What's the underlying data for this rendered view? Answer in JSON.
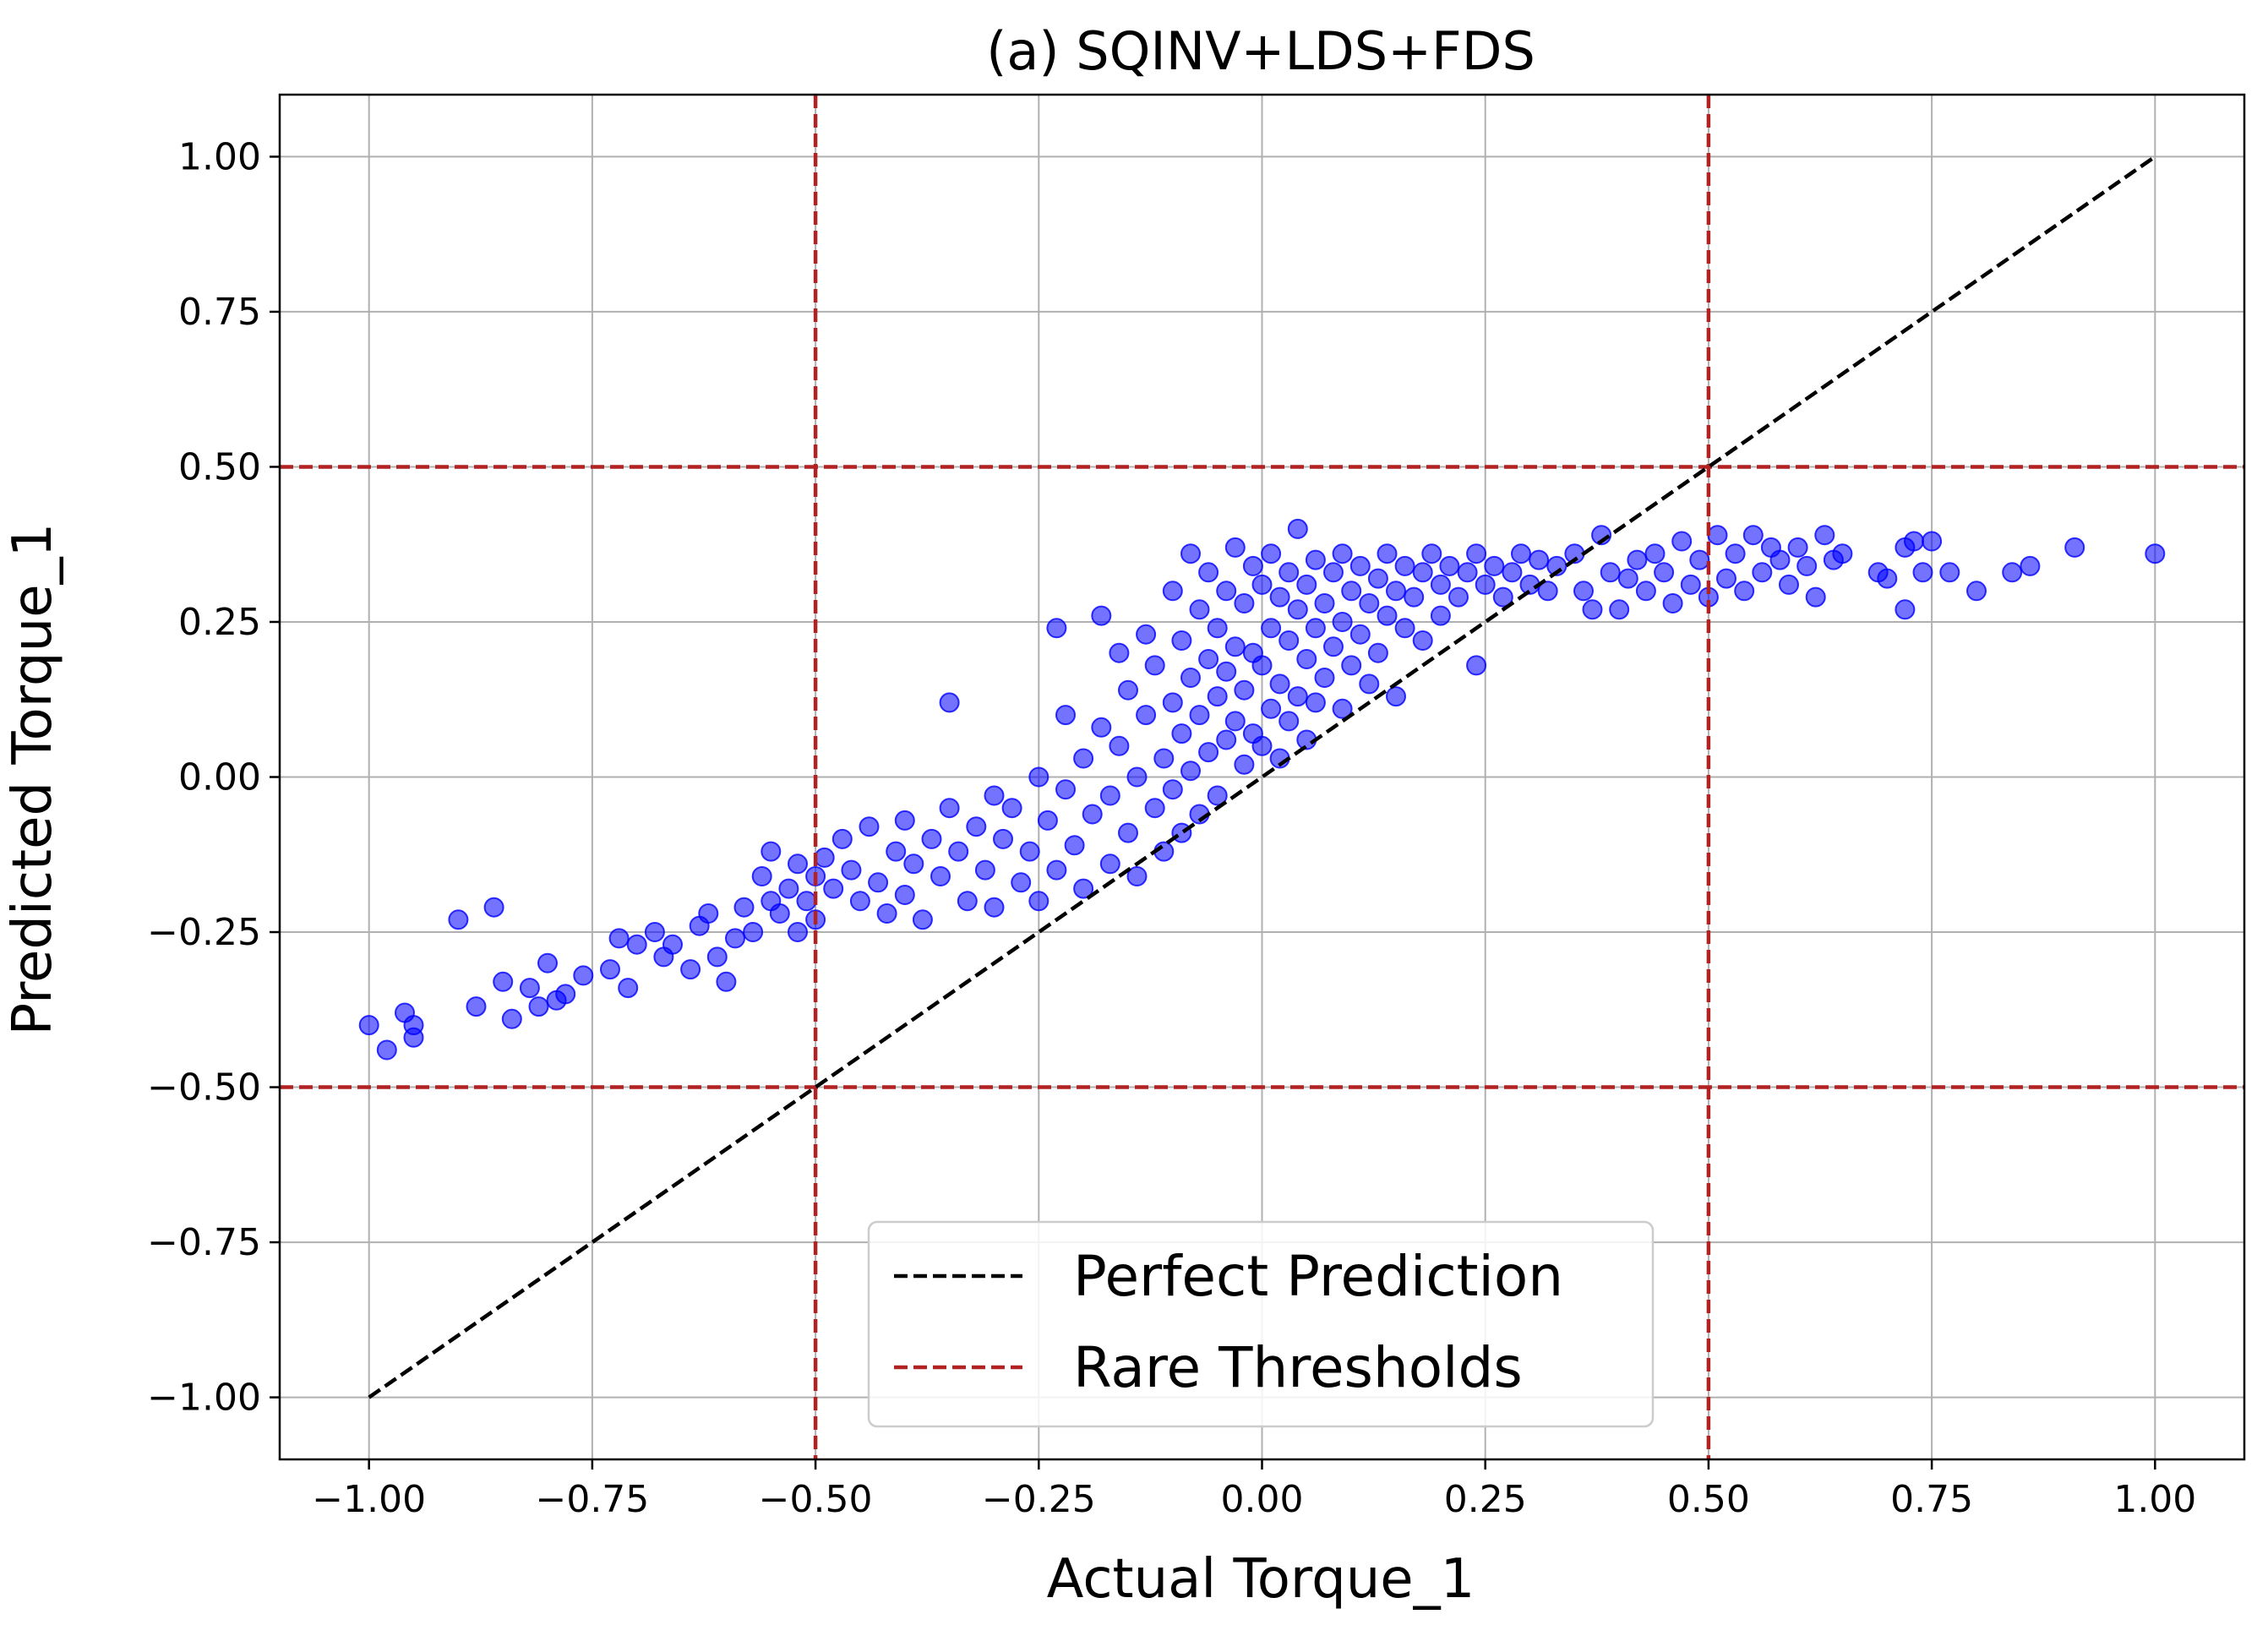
{
  "chart_data": {
    "type": "scatter",
    "title": "(a) SQINV+LDS+FDS",
    "xlabel": "Actual Torque_1",
    "ylabel": "Predicted Torque_1",
    "xlim": [
      -1.1,
      1.1
    ],
    "ylim": [
      -1.1,
      1.1
    ],
    "xticks": [
      -1.0,
      -0.75,
      -0.5,
      -0.25,
      0.0,
      0.25,
      0.5,
      0.75,
      1.0
    ],
    "yticks": [
      -1.0,
      -0.75,
      -0.5,
      -0.25,
      0.0,
      0.25,
      0.5,
      0.75,
      1.0
    ],
    "xtick_labels": [
      "−1.00",
      "−0.75",
      "−0.50",
      "−0.25",
      "0.00",
      "0.25",
      "0.50",
      "0.75",
      "1.00"
    ],
    "ytick_labels": [
      "−1.00",
      "−0.75",
      "−0.50",
      "−0.25",
      "0.00",
      "0.25",
      "0.50",
      "0.75",
      "1.00"
    ],
    "grid": true,
    "legend_position": "bottom-center",
    "perfect_prediction": {
      "name": "Perfect Prediction",
      "x": [
        -1.0,
        1.0
      ],
      "y": [
        -1.0,
        1.0
      ],
      "color": "#000000",
      "style": "dashed"
    },
    "rare_thresholds": {
      "name": "Rare Thresholds",
      "x": [
        -0.5,
        0.5
      ],
      "y": [
        -0.5,
        0.5
      ],
      "color": "#b22222",
      "style": "dashed"
    },
    "scatter_color": "#0000ff",
    "scatter_alpha": 0.55,
    "points": [
      [
        -1.0,
        -0.4
      ],
      [
        -0.98,
        -0.44
      ],
      [
        -0.96,
        -0.38
      ],
      [
        -0.95,
        -0.4
      ],
      [
        -0.95,
        -0.42
      ],
      [
        -0.9,
        -0.23
      ],
      [
        -0.88,
        -0.37
      ],
      [
        -0.86,
        -0.21
      ],
      [
        -0.85,
        -0.33
      ],
      [
        -0.84,
        -0.39
      ],
      [
        -0.82,
        -0.34
      ],
      [
        -0.81,
        -0.37
      ],
      [
        -0.8,
        -0.3
      ],
      [
        -0.79,
        -0.36
      ],
      [
        -0.78,
        -0.35
      ],
      [
        -0.76,
        -0.32
      ],
      [
        -0.73,
        -0.31
      ],
      [
        -0.72,
        -0.26
      ],
      [
        -0.71,
        -0.34
      ],
      [
        -0.7,
        -0.27
      ],
      [
        -0.68,
        -0.25
      ],
      [
        -0.67,
        -0.29
      ],
      [
        -0.66,
        -0.27
      ],
      [
        -0.64,
        -0.31
      ],
      [
        -0.63,
        -0.24
      ],
      [
        -0.62,
        -0.22
      ],
      [
        -0.61,
        -0.29
      ],
      [
        -0.6,
        -0.33
      ],
      [
        -0.59,
        -0.26
      ],
      [
        -0.58,
        -0.21
      ],
      [
        -0.57,
        -0.25
      ],
      [
        -0.56,
        -0.16
      ],
      [
        -0.55,
        -0.12
      ],
      [
        -0.55,
        -0.2
      ],
      [
        -0.54,
        -0.22
      ],
      [
        -0.53,
        -0.18
      ],
      [
        -0.52,
        -0.14
      ],
      [
        -0.52,
        -0.25
      ],
      [
        -0.51,
        -0.2
      ],
      [
        -0.5,
        -0.16
      ],
      [
        -0.5,
        -0.23
      ],
      [
        -0.49,
        -0.13
      ],
      [
        -0.48,
        -0.18
      ],
      [
        -0.47,
        -0.1
      ],
      [
        -0.46,
        -0.15
      ],
      [
        -0.45,
        -0.2
      ],
      [
        -0.44,
        -0.08
      ],
      [
        -0.43,
        -0.17
      ],
      [
        -0.42,
        -0.22
      ],
      [
        -0.41,
        -0.12
      ],
      [
        -0.4,
        -0.07
      ],
      [
        -0.4,
        -0.19
      ],
      [
        -0.39,
        -0.14
      ],
      [
        -0.38,
        -0.23
      ],
      [
        -0.37,
        -0.1
      ],
      [
        -0.36,
        -0.16
      ],
      [
        -0.35,
        -0.05
      ],
      [
        -0.35,
        0.12
      ],
      [
        -0.34,
        -0.12
      ],
      [
        -0.33,
        -0.2
      ],
      [
        -0.32,
        -0.08
      ],
      [
        -0.31,
        -0.15
      ],
      [
        -0.3,
        -0.03
      ],
      [
        -0.3,
        -0.21
      ],
      [
        -0.29,
        -0.1
      ],
      [
        -0.28,
        -0.05
      ],
      [
        -0.27,
        -0.17
      ],
      [
        -0.26,
        -0.12
      ],
      [
        -0.25,
        0.0
      ],
      [
        -0.25,
        -0.2
      ],
      [
        -0.24,
        -0.07
      ],
      [
        -0.23,
        0.24
      ],
      [
        -0.23,
        -0.15
      ],
      [
        -0.22,
        0.1
      ],
      [
        -0.22,
        -0.02
      ],
      [
        -0.21,
        -0.11
      ],
      [
        -0.2,
        0.03
      ],
      [
        -0.2,
        -0.18
      ],
      [
        -0.19,
        -0.06
      ],
      [
        -0.18,
        0.26
      ],
      [
        -0.18,
        0.08
      ],
      [
        -0.17,
        -0.03
      ],
      [
        -0.17,
        -0.14
      ],
      [
        -0.16,
        0.2
      ],
      [
        -0.16,
        0.05
      ],
      [
        -0.15,
        -0.09
      ],
      [
        -0.15,
        0.14
      ],
      [
        -0.14,
        0.0
      ],
      [
        -0.14,
        -0.16
      ],
      [
        -0.13,
        0.23
      ],
      [
        -0.13,
        0.1
      ],
      [
        -0.12,
        -0.05
      ],
      [
        -0.12,
        0.18
      ],
      [
        -0.11,
        0.03
      ],
      [
        -0.11,
        -0.12
      ],
      [
        -0.1,
        0.3
      ],
      [
        -0.1,
        0.12
      ],
      [
        -0.1,
        -0.02
      ],
      [
        -0.09,
        0.22
      ],
      [
        -0.09,
        0.07
      ],
      [
        -0.09,
        -0.09
      ],
      [
        -0.08,
        0.36
      ],
      [
        -0.08,
        0.16
      ],
      [
        -0.08,
        0.01
      ],
      [
        -0.07,
        0.27
      ],
      [
        -0.07,
        0.1
      ],
      [
        -0.07,
        -0.06
      ],
      [
        -0.06,
        0.33
      ],
      [
        -0.06,
        0.19
      ],
      [
        -0.06,
        0.04
      ],
      [
        -0.05,
        0.24
      ],
      [
        -0.05,
        0.13
      ],
      [
        -0.05,
        -0.03
      ],
      [
        -0.04,
        0.3
      ],
      [
        -0.04,
        0.17
      ],
      [
        -0.04,
        0.06
      ],
      [
        -0.03,
        0.37
      ],
      [
        -0.03,
        0.21
      ],
      [
        -0.03,
        0.09
      ],
      [
        -0.02,
        0.28
      ],
      [
        -0.02,
        0.14
      ],
      [
        -0.02,
        0.02
      ],
      [
        -0.01,
        0.34
      ],
      [
        -0.01,
        0.2
      ],
      [
        -0.01,
        0.07
      ],
      [
        0.0,
        0.31
      ],
      [
        0.0,
        0.18
      ],
      [
        0.0,
        0.05
      ],
      [
        0.01,
        0.36
      ],
      [
        0.01,
        0.24
      ],
      [
        0.01,
        0.11
      ],
      [
        0.02,
        0.29
      ],
      [
        0.02,
        0.15
      ],
      [
        0.02,
        0.03
      ],
      [
        0.03,
        0.33
      ],
      [
        0.03,
        0.22
      ],
      [
        0.03,
        0.09
      ],
      [
        0.04,
        0.4
      ],
      [
        0.04,
        0.27
      ],
      [
        0.04,
        0.13
      ],
      [
        0.05,
        0.31
      ],
      [
        0.05,
        0.19
      ],
      [
        0.05,
        0.06
      ],
      [
        0.06,
        0.35
      ],
      [
        0.06,
        0.24
      ],
      [
        0.06,
        0.12
      ],
      [
        0.07,
        0.28
      ],
      [
        0.07,
        0.16
      ],
      [
        0.08,
        0.33
      ],
      [
        0.08,
        0.21
      ],
      [
        0.09,
        0.36
      ],
      [
        0.09,
        0.25
      ],
      [
        0.09,
        0.11
      ],
      [
        0.1,
        0.3
      ],
      [
        0.1,
        0.18
      ],
      [
        0.11,
        0.34
      ],
      [
        0.11,
        0.23
      ],
      [
        0.12,
        0.28
      ],
      [
        0.12,
        0.15
      ],
      [
        0.13,
        0.32
      ],
      [
        0.13,
        0.2
      ],
      [
        0.14,
        0.36
      ],
      [
        0.14,
        0.26
      ],
      [
        0.15,
        0.3
      ],
      [
        0.15,
        0.13
      ],
      [
        0.16,
        0.34
      ],
      [
        0.16,
        0.24
      ],
      [
        0.17,
        0.29
      ],
      [
        0.18,
        0.33
      ],
      [
        0.18,
        0.22
      ],
      [
        0.19,
        0.36
      ],
      [
        0.2,
        0.31
      ],
      [
        0.2,
        0.26
      ],
      [
        0.21,
        0.34
      ],
      [
        0.22,
        0.29
      ],
      [
        0.23,
        0.33
      ],
      [
        0.24,
        0.36
      ],
      [
        0.24,
        0.18
      ],
      [
        0.25,
        0.31
      ],
      [
        0.26,
        0.34
      ],
      [
        0.27,
        0.29
      ],
      [
        0.28,
        0.33
      ],
      [
        0.29,
        0.36
      ],
      [
        0.3,
        0.31
      ],
      [
        0.31,
        0.35
      ],
      [
        0.32,
        0.3
      ],
      [
        0.33,
        0.34
      ],
      [
        0.35,
        0.36
      ],
      [
        0.36,
        0.3
      ],
      [
        0.37,
        0.27
      ],
      [
        0.38,
        0.39
      ],
      [
        0.39,
        0.33
      ],
      [
        0.4,
        0.27
      ],
      [
        0.41,
        0.32
      ],
      [
        0.42,
        0.35
      ],
      [
        0.43,
        0.3
      ],
      [
        0.44,
        0.36
      ],
      [
        0.45,
        0.33
      ],
      [
        0.46,
        0.28
      ],
      [
        0.47,
        0.38
      ],
      [
        0.48,
        0.31
      ],
      [
        0.49,
        0.35
      ],
      [
        0.5,
        0.29
      ],
      [
        0.51,
        0.39
      ],
      [
        0.52,
        0.32
      ],
      [
        0.53,
        0.36
      ],
      [
        0.54,
        0.3
      ],
      [
        0.55,
        0.39
      ],
      [
        0.56,
        0.33
      ],
      [
        0.57,
        0.37
      ],
      [
        0.58,
        0.35
      ],
      [
        0.59,
        0.31
      ],
      [
        0.6,
        0.37
      ],
      [
        0.61,
        0.34
      ],
      [
        0.62,
        0.29
      ],
      [
        0.63,
        0.39
      ],
      [
        0.64,
        0.35
      ],
      [
        0.65,
        0.36
      ],
      [
        0.69,
        0.33
      ],
      [
        0.7,
        0.32
      ],
      [
        0.72,
        0.37
      ],
      [
        0.72,
        0.27
      ],
      [
        0.73,
        0.38
      ],
      [
        0.74,
        0.33
      ],
      [
        0.75,
        0.38
      ],
      [
        0.77,
        0.33
      ],
      [
        0.8,
        0.3
      ],
      [
        0.84,
        0.33
      ],
      [
        0.86,
        0.34
      ],
      [
        0.91,
        0.37
      ],
      [
        1.0,
        0.36
      ]
    ]
  }
}
